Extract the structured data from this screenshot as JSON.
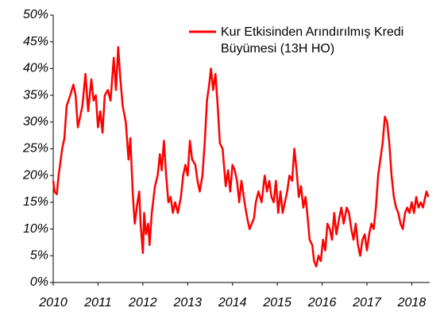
{
  "chart_data": {
    "type": "line",
    "series": [
      {
        "name": "Kur Etkisinden Arındırılmış Kredi Büyümesi (13H HO)",
        "color": "#ff0000",
        "x": [
          2010.0,
          2010.03,
          2010.08,
          2010.12,
          2010.2,
          2010.25,
          2010.3,
          2010.38,
          2010.45,
          2010.5,
          2010.55,
          2010.6,
          2010.65,
          2010.72,
          2010.78,
          2010.85,
          2010.9,
          2010.95,
          2011.0,
          2011.05,
          2011.1,
          2011.15,
          2011.22,
          2011.28,
          2011.35,
          2011.4,
          2011.45,
          2011.5,
          2011.55,
          2011.62,
          2011.68,
          2011.72,
          2011.78,
          2011.82,
          2011.88,
          2011.92,
          2011.95,
          2012.0,
          2012.03,
          2012.07,
          2012.12,
          2012.15,
          2012.2,
          2012.27,
          2012.33,
          2012.38,
          2012.42,
          2012.47,
          2012.52,
          2012.57,
          2012.62,
          2012.67,
          2012.72,
          2012.78,
          2012.85,
          2012.9,
          2012.95,
          2013.0,
          2013.05,
          2013.1,
          2013.17,
          2013.22,
          2013.27,
          2013.33,
          2013.38,
          2013.43,
          2013.48,
          2013.52,
          2013.57,
          2013.62,
          2013.67,
          2013.72,
          2013.78,
          2013.85,
          2013.9,
          2013.95,
          2014.0,
          2014.05,
          2014.1,
          2014.15,
          2014.2,
          2014.27,
          2014.33,
          2014.38,
          2014.43,
          2014.48,
          2014.52,
          2014.58,
          2014.65,
          2014.72,
          2014.77,
          2014.82,
          2014.87,
          2014.92,
          2014.97,
          2015.02,
          2015.07,
          2015.12,
          2015.17,
          2015.22,
          2015.27,
          2015.33,
          2015.38,
          2015.43,
          2015.48,
          2015.53,
          2015.58,
          2015.63,
          2015.68,
          2015.72,
          2015.78,
          2015.82,
          2015.87,
          2015.92,
          2015.97,
          2016.02,
          2016.07,
          2016.12,
          2016.17,
          2016.22,
          2016.27,
          2016.32,
          2016.38,
          2016.43,
          2016.48,
          2016.55,
          2016.6,
          2016.65,
          2016.7,
          2016.75,
          2016.8,
          2016.85,
          2016.9,
          2016.95,
          2017.0,
          2017.05,
          2017.1,
          2017.15,
          2017.2,
          2017.25,
          2017.3,
          2017.35,
          2017.4,
          2017.45,
          2017.5,
          2017.55,
          2017.6,
          2017.65,
          2017.7,
          2017.75,
          2017.8,
          2017.85,
          2017.9,
          2017.95,
          2018.0,
          2018.05,
          2018.1,
          2018.15,
          2018.2,
          2018.25,
          2018.3,
          2018.33,
          2018.37
        ],
        "values": [
          19,
          17,
          16.5,
          20,
          25,
          27,
          33,
          35,
          37,
          35,
          29,
          31,
          33,
          39,
          32,
          38,
          34,
          35,
          29,
          32,
          28,
          35,
          36,
          34,
          42,
          36,
          44,
          38,
          33,
          30,
          23,
          27,
          16,
          11,
          15,
          17,
          11,
          5.5,
          13,
          9,
          11,
          7,
          13,
          18,
          20,
          24,
          21,
          26.5,
          20,
          15,
          16,
          13,
          15,
          13,
          16,
          20,
          22,
          20,
          26.5,
          23,
          22,
          19,
          17,
          20,
          26,
          34,
          37,
          40,
          36,
          39,
          33,
          26,
          25,
          18,
          21,
          17,
          22,
          21,
          19,
          15,
          19,
          15,
          12,
          10,
          11,
          12,
          15,
          17,
          15,
          20,
          17,
          19,
          16,
          15,
          19,
          13,
          17,
          13,
          15,
          17,
          20,
          19,
          25,
          21,
          16,
          18,
          14,
          16,
          12,
          8,
          7,
          4,
          3,
          5,
          4,
          8,
          6,
          11,
          10,
          8,
          13,
          9,
          12,
          14,
          11,
          14,
          13,
          10,
          8,
          11,
          7,
          5,
          8,
          9,
          6,
          9,
          11,
          10,
          14,
          20,
          23,
          26,
          31,
          30,
          26,
          20,
          16,
          14,
          13,
          11,
          10,
          13,
          14,
          13,
          15,
          13,
          16,
          14,
          15,
          14,
          16,
          17,
          16
        ]
      }
    ],
    "xlim": [
      2010,
      2018.4
    ],
    "xticks": [
      2010,
      2011,
      2012,
      2013,
      2014,
      2015,
      2016,
      2017,
      2018
    ],
    "ylim": [
      0,
      50
    ],
    "yticks": [
      {
        "value": 0,
        "label": "0%"
      },
      {
        "value": 5,
        "label": "5%"
      },
      {
        "value": 10,
        "label": "10%"
      },
      {
        "value": 15,
        "label": "15%"
      },
      {
        "value": 20,
        "label": "20%"
      },
      {
        "value": 25,
        "label": "25%"
      },
      {
        "value": 30,
        "label": "30%"
      },
      {
        "value": 35,
        "label": "35%"
      },
      {
        "value": 40,
        "label": "40%"
      },
      {
        "value": 45,
        "label": "45%"
      },
      {
        "value": 50,
        "label": "50%"
      }
    ],
    "grid": false
  }
}
